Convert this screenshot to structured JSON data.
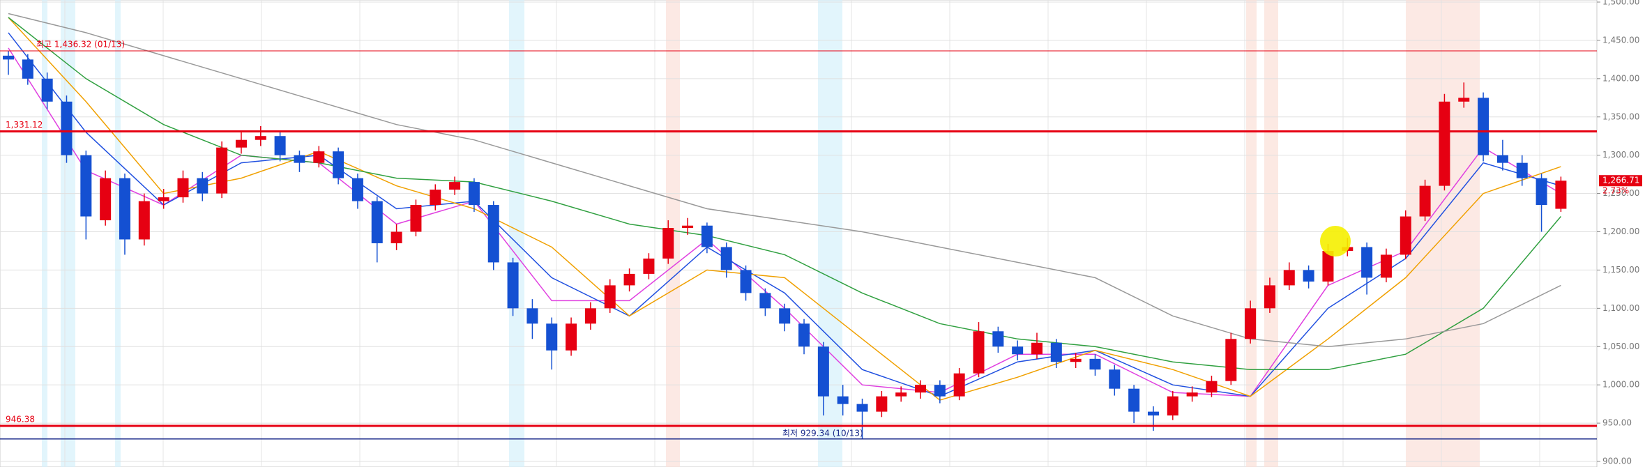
{
  "chart_data": {
    "type": "candlestick",
    "ylim": [
      900,
      1500
    ],
    "yticks": [
      {
        "value": 900,
        "label": "900.00"
      },
      {
        "value": 950,
        "label": "950.00"
      },
      {
        "value": 1000,
        "label": "1,000.00"
      },
      {
        "value": 1050,
        "label": "1,050.00"
      },
      {
        "value": 1100,
        "label": "1,100.00"
      },
      {
        "value": 1150,
        "label": "1,150.00"
      },
      {
        "value": 1200,
        "label": "1,200.00"
      },
      {
        "value": 1250,
        "label": "1,250.00"
      },
      {
        "value": 1300,
        "label": "1,300.00"
      },
      {
        "value": 1350,
        "label": "1,350.00"
      },
      {
        "value": 1400,
        "label": "1,400.00"
      },
      {
        "value": 1450,
        "label": "1,450.00"
      },
      {
        "value": 1500,
        "label": "1,500.00"
      }
    ],
    "grid": true,
    "up_color": "#e60012",
    "down_color": "#1450d2",
    "open": [
      1430,
      1425,
      1400,
      1370,
      1300,
      1215,
      1270,
      1190,
      1240,
      1245,
      1270,
      1250,
      1310,
      1320,
      1325,
      1300,
      1290,
      1305,
      1270,
      1240,
      1185,
      1200,
      1235,
      1255,
      1265,
      1235,
      1160,
      1100,
      1080,
      1045,
      1080,
      1100,
      1130,
      1145,
      1165,
      1205,
      1208,
      1180,
      1150,
      1120,
      1100,
      1080,
      1050,
      985,
      975,
      965,
      985,
      990,
      1000,
      985,
      1015,
      1070,
      1050,
      1040,
      1055,
      1030,
      1034,
      1020,
      995,
      965,
      960,
      985,
      990,
      1005,
      1060,
      1100,
      1130,
      1150,
      1135,
      1175,
      1180,
      1140,
      1170,
      1220,
      1260,
      1370,
      1375,
      1300,
      1290,
      1270,
      1230
    ],
    "high": [
      1436.32,
      1432,
      1408,
      1378,
      1306,
      1280,
      1276,
      1250,
      1256,
      1280,
      1278,
      1318,
      1330,
      1338,
      1332,
      1306,
      1312,
      1310,
      1276,
      1246,
      1210,
      1242,
      1262,
      1272,
      1270,
      1240,
      1166,
      1112,
      1088,
      1088,
      1108,
      1138,
      1152,
      1172,
      1215,
      1218,
      1212,
      1186,
      1156,
      1126,
      1106,
      1086,
      1056,
      1000,
      982,
      992,
      998,
      1006,
      1006,
      1022,
      1082,
      1076,
      1058,
      1068,
      1060,
      1042,
      1040,
      1026,
      1000,
      972,
      992,
      998,
      1012,
      1068,
      1110,
      1140,
      1160,
      1156,
      1184,
      1192,
      1186,
      1178,
      1228,
      1268,
      1380,
      1395,
      1382,
      1320,
      1300,
      1276,
      1272
    ],
    "low": [
      1405,
      1392,
      1360,
      1290,
      1190,
      1208,
      1170,
      1182,
      1230,
      1238,
      1240,
      1244,
      1302,
      1312,
      1292,
      1278,
      1284,
      1262,
      1230,
      1160,
      1176,
      1194,
      1228,
      1248,
      1226,
      1150,
      1090,
      1060,
      1020,
      1038,
      1072,
      1094,
      1122,
      1138,
      1158,
      1196,
      1172,
      1140,
      1110,
      1090,
      1070,
      1040,
      960,
      960,
      929.34,
      958,
      978,
      982,
      976,
      980,
      1010,
      1042,
      1032,
      1034,
      1022,
      1022,
      1012,
      986,
      950,
      940,
      954,
      978,
      984,
      1000,
      1054,
      1094,
      1124,
      1126,
      1130,
      1168,
      1118,
      1134,
      1164,
      1214,
      1254,
      1362,
      1292,
      1280,
      1260,
      1200,
      1226
    ],
    "close": [
      1425,
      1400,
      1370,
      1300,
      1220,
      1270,
      1190,
      1240,
      1245,
      1270,
      1250,
      1310,
      1320,
      1325,
      1300,
      1290,
      1305,
      1270,
      1240,
      1185,
      1200,
      1235,
      1255,
      1265,
      1235,
      1160,
      1100,
      1080,
      1045,
      1080,
      1100,
      1130,
      1145,
      1165,
      1205,
      1208,
      1180,
      1150,
      1120,
      1100,
      1080,
      1050,
      985,
      975,
      965,
      985,
      990,
      1000,
      985,
      1015,
      1070,
      1050,
      1040,
      1055,
      1030,
      1034,
      1020,
      995,
      965,
      960,
      985,
      990,
      1005,
      1060,
      1100,
      1130,
      1150,
      1135,
      1175,
      1180,
      1140,
      1170,
      1220,
      1260,
      1370,
      1375,
      1300,
      1290,
      1270,
      1235,
      1266.71
    ],
    "series": [
      {
        "color": "#e040e0",
        "x": [
          0,
          4,
          8,
          12,
          16,
          20,
          24,
          28,
          32,
          36,
          40,
          44,
          48,
          52,
          56,
          60,
          64,
          68,
          72,
          76,
          80
        ],
        "values": [
          1440,
          1280,
          1235,
          1300,
          1290,
          1210,
          1240,
          1110,
          1110,
          1190,
          1100,
          1000,
          990,
          1040,
          1040,
          990,
          985,
          1130,
          1175,
          1310,
          1250
        ]
      },
      {
        "color": "#2050e0",
        "x": [
          0,
          4,
          8,
          12,
          16,
          20,
          24,
          28,
          32,
          36,
          40,
          44,
          48,
          52,
          56,
          60,
          64,
          68,
          72,
          76,
          80
        ],
        "values": [
          1460,
          1330,
          1235,
          1290,
          1300,
          1230,
          1240,
          1140,
          1090,
          1180,
          1120,
          1020,
          985,
          1030,
          1045,
          1000,
          985,
          1100,
          1165,
          1290,
          1260
        ]
      },
      {
        "color": "#f0a000",
        "x": [
          0,
          4,
          8,
          12,
          16,
          20,
          24,
          28,
          32,
          36,
          40,
          44,
          48,
          52,
          56,
          60,
          64,
          68,
          72,
          76,
          80
        ],
        "values": [
          1480,
          1370,
          1250,
          1270,
          1305,
          1260,
          1230,
          1180,
          1090,
          1150,
          1140,
          1060,
          980,
          1010,
          1045,
          1020,
          985,
          1060,
          1140,
          1250,
          1285
        ]
      },
      {
        "color": "#30a040",
        "x": [
          0,
          4,
          8,
          12,
          16,
          20,
          24,
          28,
          32,
          36,
          40,
          44,
          48,
          52,
          56,
          60,
          64,
          68,
          72,
          76,
          80
        ],
        "values": [
          1480,
          1400,
          1340,
          1300,
          1290,
          1270,
          1265,
          1240,
          1210,
          1195,
          1170,
          1120,
          1080,
          1060,
          1050,
          1030,
          1020,
          1020,
          1040,
          1100,
          1220
        ]
      },
      {
        "color": "#999999",
        "x": [
          0,
          4,
          8,
          12,
          16,
          20,
          24,
          28,
          32,
          36,
          40,
          44,
          48,
          52,
          56,
          60,
          64,
          68,
          72,
          76,
          80
        ],
        "values": [
          1485,
          1460,
          1430,
          1400,
          1370,
          1340,
          1320,
          1290,
          1260,
          1230,
          1215,
          1200,
          1180,
          1160,
          1140,
          1090,
          1060,
          1050,
          1060,
          1080,
          1130
        ]
      }
    ],
    "hlines": [
      {
        "value": 1436.32,
        "label": "최고 1,436.32 (01/13)",
        "color": "#e60012",
        "width": 1
      },
      {
        "value": 1331.12,
        "label": "1,331.12",
        "color": "#e60012",
        "width": 3
      },
      {
        "value": 946.38,
        "label": "946.38",
        "color": "#e60012",
        "width": 3
      },
      {
        "value": 929.34,
        "label": "최저 929.34 (10/13)",
        "color": "#1a2a8a",
        "width": 1.5
      }
    ],
    "last_price": {
      "value": 1266.71,
      "label": "1,266.71"
    },
    "change_label": "2.73%"
  }
}
